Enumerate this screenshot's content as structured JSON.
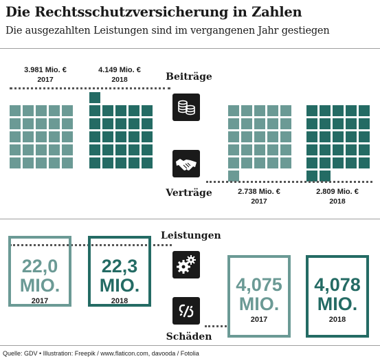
{
  "title": "Die Rechtsschutzversicherung in Zahlen",
  "subtitle": "Die ausgezahlten Leistungen sind im vergangenen Jahr gestiegen",
  "colors": {
    "light": "#6b9a95",
    "dark": "#246b64",
    "text": "#1a1a1a"
  },
  "beitraege": {
    "label": "Beiträge",
    "icon": "coins-icon",
    "y2017": {
      "value": "3.981 Mio. €",
      "year": "2017",
      "squares": 27
    },
    "y2018": {
      "value": "4.149 Mio. €",
      "year": "2018",
      "squares": 28
    }
  },
  "vertraege": {
    "label": "Verträge",
    "icon": "handshake-icon",
    "y2017": {
      "value": "2.738 Mio. €",
      "year": "2017",
      "squares": 26
    },
    "y2018": {
      "value": "2.809 Mio. €",
      "year": "2018",
      "squares": 27
    }
  },
  "leistungen": {
    "label": "Leistungen",
    "icon": "gears-icon",
    "y2017": {
      "number": "22,0",
      "unit": "MIO.",
      "year": "2017"
    },
    "y2018": {
      "number": "22,3",
      "unit": "MIO.",
      "year": "2018"
    }
  },
  "schaeden": {
    "label": "Schäden",
    "icon": "broken-chain-icon",
    "y2017": {
      "number": "4,075",
      "unit": "MIO.",
      "year": "2017"
    },
    "y2018": {
      "number": "4,078",
      "unit": "MIO.",
      "year": "2018"
    }
  },
  "source": "Quelle: GDV • Illustration: Freepik / www.flaticon.com, davooda / Fotolia"
}
